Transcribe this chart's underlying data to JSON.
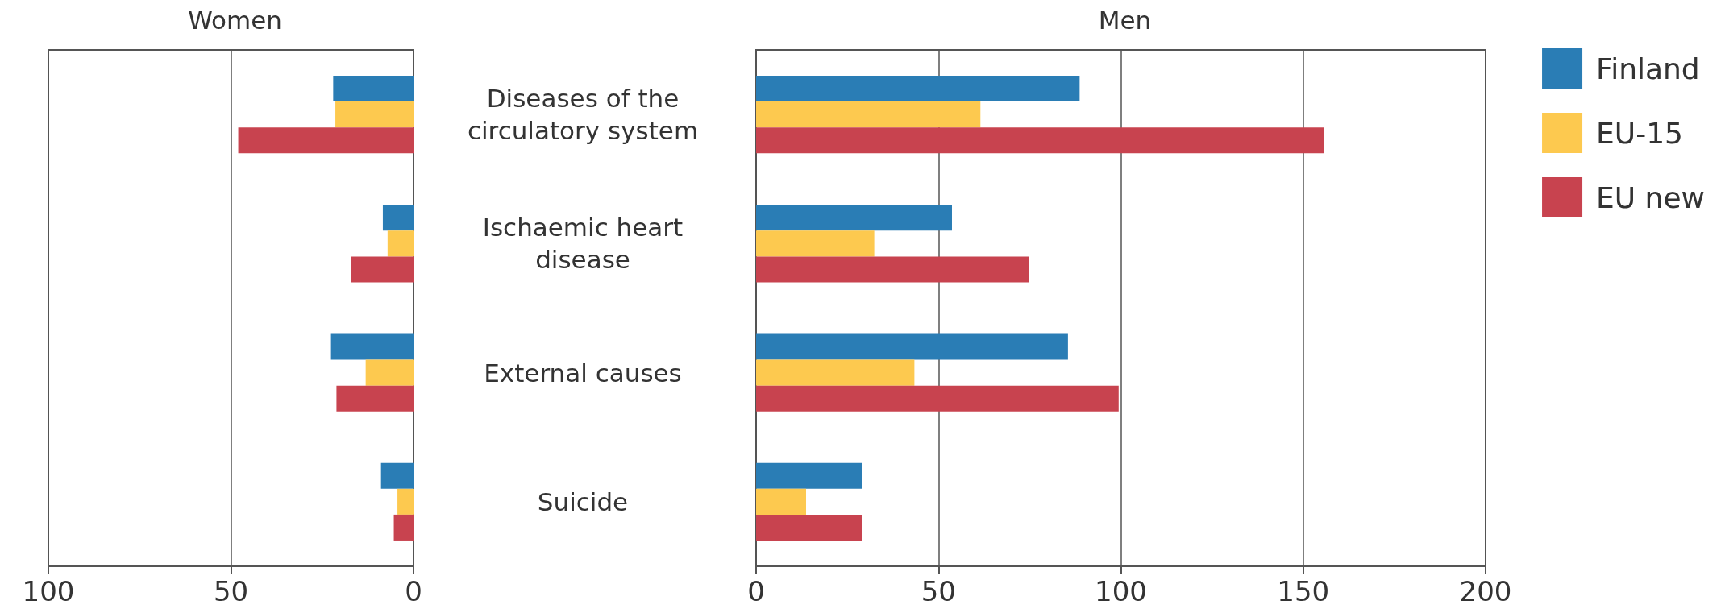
{
  "chart_data": [
    {
      "type": "bar",
      "orientation": "horizontal",
      "title": "Women",
      "categories": [
        null,
        null,
        null,
        null
      ],
      "series": [
        {
          "color": "#2a7db5",
          "values": [
            22,
            8.4,
            22.6,
            8.9
          ]
        },
        {
          "color": "#fdc94f",
          "values": [
            21.4,
            7.1,
            13.1,
            4.4
          ]
        },
        {
          "color": "#c8434f",
          "values": [
            48,
            17.2,
            21.1,
            5.4
          ]
        }
      ],
      "xlim": [
        100,
        0
      ],
      "xticks": [
        100,
        50,
        0
      ],
      "grid": "x",
      "legend": false,
      "tick_labels": "x"
    },
    {
      "type": "bar",
      "orientation": "horizontal",
      "title": "Men",
      "categories": [
        "Diseases of the\ncirculatory system",
        "Ischaemic heart\ndisease",
        "External causes",
        "Suicide"
      ],
      "series": [
        {
          "name": "Finland",
          "color": "#2a7db5",
          "values": [
            88.7,
            53.7,
            85.5,
            29.1
          ]
        },
        {
          "name": "EU-15",
          "color": "#fdc94f",
          "values": [
            61.5,
            32.4,
            43.4,
            13.7
          ]
        },
        {
          "name": "EU new",
          "color": "#c8434f",
          "values": [
            155.8,
            74.8,
            99.4,
            29.1
          ]
        }
      ],
      "xlim": [
        0,
        200
      ],
      "xticks": [
        0,
        50,
        100,
        150,
        200
      ],
      "grid": "x",
      "legend": "right"
    }
  ]
}
